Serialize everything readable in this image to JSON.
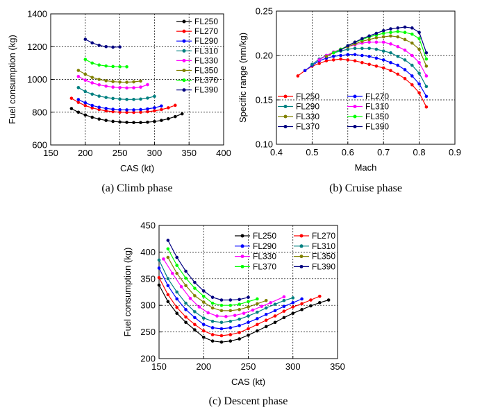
{
  "chart_data": [
    {
      "type": "line",
      "caption": "(a) Climb phase",
      "xlabel": "CAS (kt)",
      "ylabel": "Fuel consumption (kg)",
      "xlim": [
        150,
        400
      ],
      "ylim": [
        600,
        1400
      ],
      "xticks": [
        150,
        200,
        250,
        300,
        350,
        400
      ],
      "yticks": [
        600,
        800,
        1000,
        1200,
        1400
      ],
      "grid": true,
      "legend_position": "top-right",
      "series": [
        {
          "name": "FL250",
          "color": "#000000",
          "x": [
            180,
            190,
            200,
            210,
            220,
            230,
            240,
            250,
            260,
            270,
            280,
            290,
            300,
            310,
            320,
            330,
            340
          ],
          "y": [
            822,
            800,
            783,
            769,
            758,
            750,
            744,
            740,
            738,
            737,
            737,
            739,
            743,
            750,
            760,
            773,
            790
          ]
        },
        {
          "name": "FL270",
          "color": "#ff0000",
          "x": [
            180,
            190,
            200,
            210,
            220,
            230,
            240,
            250,
            260,
            270,
            280,
            290,
            300,
            310,
            320,
            330
          ],
          "y": [
            885,
            860,
            840,
            826,
            816,
            808,
            803,
            800,
            799,
            799,
            800,
            803,
            808,
            816,
            827,
            842
          ]
        },
        {
          "name": "FL290",
          "color": "#0000ff",
          "x": [
            190,
            200,
            210,
            220,
            230,
            240,
            250,
            260,
            270,
            280,
            290,
            300,
            310
          ],
          "y": [
            877,
            857,
            841,
            830,
            823,
            818,
            815,
            814,
            814,
            816,
            820,
            827,
            838
          ]
        },
        {
          "name": "FL310",
          "color": "#008080",
          "x": [
            190,
            200,
            210,
            220,
            230,
            240,
            250,
            260,
            270,
            280,
            290,
            300
          ],
          "y": [
            950,
            926,
            910,
            898,
            890,
            884,
            880,
            878,
            878,
            880,
            886,
            897
          ]
        },
        {
          "name": "FL330",
          "color": "#ff00ff",
          "x": [
            190,
            200,
            210,
            220,
            230,
            240,
            250,
            260,
            270,
            280,
            290
          ],
          "y": [
            1018,
            995,
            979,
            967,
            959,
            953,
            950,
            948,
            949,
            953,
            968
          ]
        },
        {
          "name": "FL350",
          "color": "#808000",
          "x": [
            190,
            200,
            210,
            220,
            230,
            240,
            250,
            260,
            270,
            280
          ],
          "y": [
            1055,
            1032,
            1012,
            1000,
            992,
            987,
            984,
            983,
            985,
            990
          ]
        },
        {
          "name": "FL370",
          "color": "#00ff00",
          "x": [
            200,
            210,
            220,
            230,
            240,
            250,
            260
          ],
          "y": [
            1122,
            1100,
            1088,
            1082,
            1079,
            1077,
            1077
          ]
        },
        {
          "name": "FL390",
          "color": "#000080",
          "x": [
            200,
            210,
            220,
            230,
            240,
            250
          ],
          "y": [
            1245,
            1223,
            1208,
            1200,
            1197,
            1198
          ]
        }
      ]
    },
    {
      "type": "line",
      "caption": "(b) Cruise phase",
      "xlabel": "Mach",
      "ylabel": "Specific range (nm/kg)",
      "xlim": [
        0.4,
        0.9
      ],
      "ylim": [
        0.1,
        0.25
      ],
      "xticks": [
        "0.4",
        "0.5",
        "0.6",
        "0.7",
        "0.8",
        "0.9"
      ],
      "yticks": [
        "0.10",
        "0.15",
        "0.20",
        "0.25"
      ],
      "grid": true,
      "legend_position": "bottom-left",
      "series": [
        {
          "name": "FL250",
          "color": "#ff0000",
          "x": [
            0.46,
            0.48,
            0.5,
            0.52,
            0.54,
            0.56,
            0.58,
            0.6,
            0.62,
            0.64,
            0.66,
            0.68,
            0.7,
            0.72,
            0.74,
            0.76,
            0.78,
            0.8,
            0.82
          ],
          "y": [
            0.177,
            0.183,
            0.188,
            0.191,
            0.194,
            0.195,
            0.196,
            0.195,
            0.194,
            0.192,
            0.19,
            0.188,
            0.186,
            0.183,
            0.179,
            0.174,
            0.167,
            0.158,
            0.142
          ]
        },
        {
          "name": "FL270",
          "color": "#0000ff",
          "x": [
            0.48,
            0.5,
            0.52,
            0.54,
            0.56,
            0.58,
            0.6,
            0.62,
            0.64,
            0.66,
            0.68,
            0.7,
            0.72,
            0.74,
            0.76,
            0.78,
            0.8,
            0.82
          ],
          "y": [
            0.183,
            0.189,
            0.194,
            0.197,
            0.199,
            0.2,
            0.201,
            0.201,
            0.2,
            0.199,
            0.197,
            0.195,
            0.192,
            0.189,
            0.184,
            0.177,
            0.168,
            0.154
          ]
        },
        {
          "name": "FL290",
          "color": "#008080",
          "x": [
            0.5,
            0.52,
            0.54,
            0.56,
            0.58,
            0.6,
            0.62,
            0.64,
            0.66,
            0.68,
            0.7,
            0.72,
            0.74,
            0.76,
            0.78,
            0.8,
            0.82
          ],
          "y": [
            0.19,
            0.196,
            0.2,
            0.203,
            0.205,
            0.207,
            0.208,
            0.208,
            0.208,
            0.207,
            0.205,
            0.203,
            0.199,
            0.195,
            0.189,
            0.18,
            0.165
          ]
        },
        {
          "name": "FL310",
          "color": "#ff00ff",
          "x": [
            0.52,
            0.54,
            0.56,
            0.58,
            0.6,
            0.62,
            0.64,
            0.66,
            0.68,
            0.7,
            0.72,
            0.74,
            0.76,
            0.78,
            0.8,
            0.82
          ],
          "y": [
            0.195,
            0.2,
            0.204,
            0.207,
            0.21,
            0.212,
            0.214,
            0.215,
            0.215,
            0.215,
            0.213,
            0.21,
            0.206,
            0.2,
            0.192,
            0.177
          ]
        },
        {
          "name": "FL330",
          "color": "#808000",
          "x": [
            0.54,
            0.56,
            0.58,
            0.6,
            0.62,
            0.64,
            0.66,
            0.68,
            0.7,
            0.72,
            0.74,
            0.76,
            0.78,
            0.8,
            0.82
          ],
          "y": [
            0.199,
            0.203,
            0.207,
            0.21,
            0.213,
            0.216,
            0.218,
            0.22,
            0.221,
            0.222,
            0.221,
            0.218,
            0.214,
            0.207,
            0.188
          ]
        },
        {
          "name": "FL350",
          "color": "#00ff00",
          "x": [
            0.56,
            0.58,
            0.6,
            0.62,
            0.64,
            0.66,
            0.68,
            0.7,
            0.72,
            0.74,
            0.76,
            0.78,
            0.8,
            0.82
          ],
          "y": [
            0.203,
            0.207,
            0.211,
            0.215,
            0.218,
            0.221,
            0.223,
            0.225,
            0.226,
            0.227,
            0.226,
            0.224,
            0.219,
            0.196
          ]
        },
        {
          "name": "FL370",
          "color": "#000080",
          "x": [
            0.58,
            0.6,
            0.62,
            0.64,
            0.66,
            0.68,
            0.7,
            0.72,
            0.74,
            0.76,
            0.78,
            0.8,
            0.82
          ],
          "y": [
            0.206,
            0.211,
            0.215,
            0.219,
            0.222,
            0.225,
            0.228,
            0.23,
            0.231,
            0.232,
            0.231,
            0.226,
            0.203
          ]
        },
        {
          "name": "FL390",
          "color": "#000080",
          "x": [],
          "y": []
        }
      ]
    },
    {
      "type": "line",
      "caption": "(c) Descent phase",
      "xlabel": "CAS (kt)",
      "ylabel": "Fuel consumption (kg)",
      "xlim": [
        150,
        350
      ],
      "ylim": [
        200,
        450
      ],
      "xticks": [
        150,
        200,
        250,
        300,
        350
      ],
      "yticks": [
        200,
        250,
        300,
        350,
        400,
        450
      ],
      "grid": true,
      "legend_position": "top-right",
      "series": [
        {
          "name": "FL250",
          "color": "#000000",
          "x": [
            150,
            160,
            170,
            180,
            190,
            200,
            210,
            220,
            230,
            240,
            250,
            260,
            270,
            280,
            290,
            300,
            310,
            320,
            330,
            340
          ],
          "y": [
            338,
            307,
            285,
            268,
            254,
            240,
            233,
            231,
            233,
            237,
            244,
            252,
            260,
            268,
            277,
            285,
            292,
            299,
            305,
            310
          ]
        },
        {
          "name": "FL270",
          "color": "#ff0000",
          "x": [
            150,
            160,
            170,
            180,
            190,
            200,
            210,
            220,
            230,
            240,
            250,
            260,
            270,
            280,
            290,
            300,
            310,
            320,
            330
          ],
          "y": [
            352,
            320,
            296,
            278,
            264,
            252,
            245,
            243,
            245,
            249,
            256,
            264,
            272,
            280,
            289,
            297,
            303,
            310,
            317
          ]
        },
        {
          "name": "FL290",
          "color": "#0000ff",
          "x": [
            150,
            160,
            170,
            180,
            190,
            200,
            210,
            220,
            230,
            240,
            250,
            260,
            270,
            280,
            290,
            300,
            310
          ],
          "y": [
            370,
            337,
            312,
            292,
            277,
            264,
            258,
            256,
            258,
            262,
            268,
            275,
            283,
            290,
            298,
            305,
            312
          ]
        },
        {
          "name": "FL310",
          "color": "#008080",
          "x": [
            150,
            160,
            170,
            180,
            190,
            200,
            210,
            220,
            230,
            240,
            250,
            260,
            270,
            280,
            290,
            300
          ],
          "y": [
            385,
            350,
            325,
            304,
            288,
            276,
            270,
            268,
            270,
            274,
            280,
            287,
            295,
            302,
            309,
            314
          ]
        },
        {
          "name": "FL330",
          "color": "#ff00ff",
          "x": [
            155,
            165,
            175,
            185,
            195,
            205,
            215,
            225,
            235,
            245,
            255,
            265,
            275,
            290
          ],
          "y": [
            387,
            360,
            335,
            313,
            297,
            286,
            280,
            279,
            281,
            285,
            291,
            298,
            305,
            316
          ]
        },
        {
          "name": "FL350",
          "color": "#808000",
          "x": [
            160,
            170,
            180,
            190,
            200,
            210,
            220,
            230,
            240,
            250,
            260,
            270
          ],
          "y": [
            390,
            360,
            337,
            318,
            306,
            295,
            290,
            290,
            292,
            297,
            303,
            309
          ]
        },
        {
          "name": "FL370",
          "color": "#00ff00",
          "x": [
            160,
            170,
            180,
            190,
            200,
            210,
            220,
            230,
            240,
            250,
            260
          ],
          "y": [
            406,
            375,
            351,
            332,
            317,
            304,
            300,
            300,
            302,
            307,
            312
          ]
        },
        {
          "name": "FL390",
          "color": "#000080",
          "x": [
            160,
            170,
            180,
            190,
            200,
            210,
            220,
            230,
            240,
            250
          ],
          "y": [
            422,
            390,
            364,
            343,
            327,
            315,
            310,
            310,
            311,
            315
          ]
        }
      ]
    }
  ]
}
